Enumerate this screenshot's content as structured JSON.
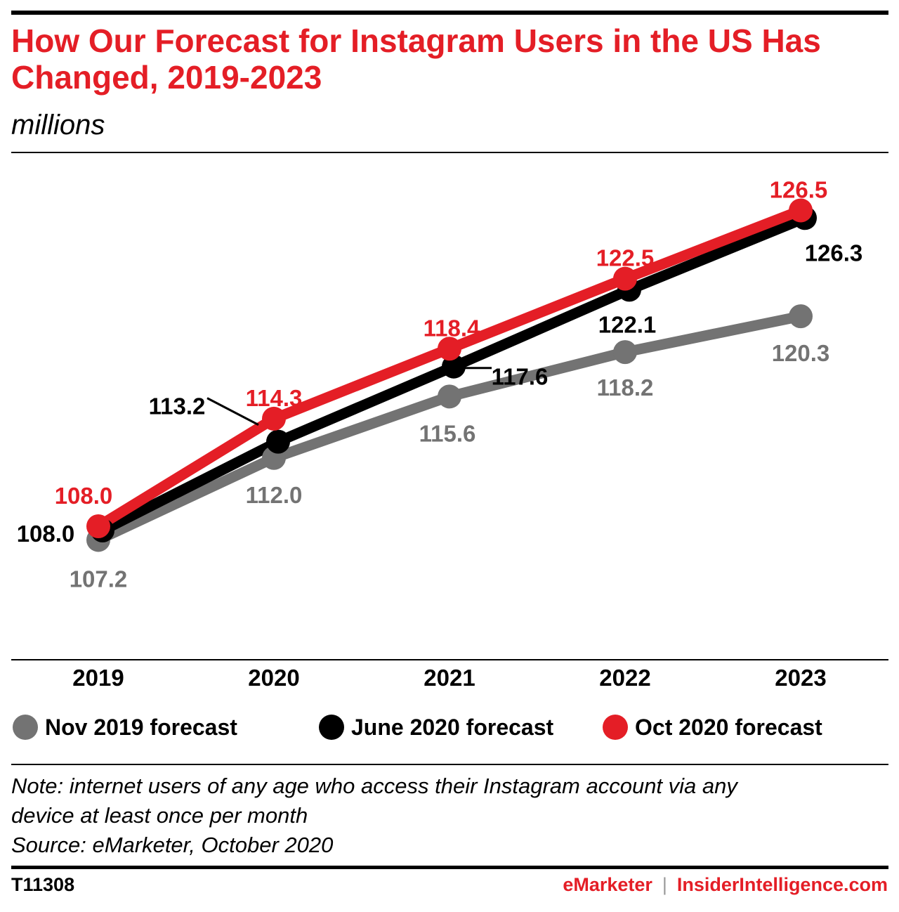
{
  "header": {
    "title": "How Our Forecast for Instagram Users in the US Has Changed, 2019-2023",
    "subtitle": "millions"
  },
  "chart_data": {
    "type": "line",
    "title": "How Our Forecast for Instagram Users in the US Has Changed, 2019-2023",
    "subtitle": "millions",
    "x": [
      "2019",
      "2020",
      "2021",
      "2022",
      "2023"
    ],
    "ylim": [
      100,
      130
    ],
    "grid": false,
    "legend_position": "bottom",
    "series": [
      {
        "name": "Nov 2019 forecast",
        "color": "#737373",
        "labels": [
          "107.2",
          "112.0",
          "115.6",
          "118.2",
          "120.3"
        ],
        "values": [
          107.2,
          112.0,
          115.6,
          118.2,
          120.3
        ]
      },
      {
        "name": "June 2020 forecast",
        "color": "#000000",
        "labels": [
          "108.0",
          "113.2",
          "117.6",
          "122.1",
          "126.3"
        ],
        "values": [
          108.0,
          113.2,
          117.6,
          122.1,
          126.3
        ]
      },
      {
        "name": "Oct 2020 forecast",
        "color": "#e41e26",
        "labels": [
          "108.0",
          "114.3",
          "118.4",
          "122.5",
          "126.5"
        ],
        "values": [
          108.0,
          114.3,
          118.4,
          122.5,
          126.5
        ]
      }
    ]
  },
  "legend": {
    "items": [
      {
        "label": "Nov 2019 forecast",
        "color": "#737373"
      },
      {
        "label": "June 2020 forecast",
        "color": "#000000"
      },
      {
        "label": "Oct 2020 forecast",
        "color": "#e41e26"
      }
    ]
  },
  "note": {
    "line1": "Note: internet users of any age who access their Instagram account via any",
    "line2": "device at least once per month",
    "source": "Source: eMarketer, October 2020"
  },
  "footer": {
    "chart_id": "T11308",
    "brand_emarketer": "eMarketer",
    "separator": "|",
    "brand_insider": "InsiderIntelligence.com"
  },
  "colors": {
    "accent": "#e41e26",
    "gray": "#737373",
    "black": "#000000"
  }
}
